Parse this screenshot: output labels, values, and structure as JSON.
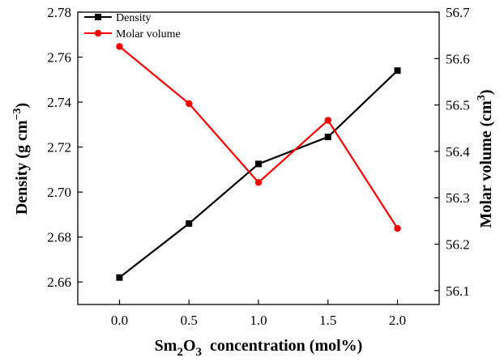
{
  "chart_data": {
    "type": "line",
    "x": [
      0.0,
      0.5,
      1.0,
      1.5,
      2.0
    ],
    "xlim": [
      -0.3,
      2.3
    ],
    "x_ticks": [
      "0.0",
      "0.5",
      "1.0",
      "1.5",
      "2.0"
    ],
    "xlabel": {
      "prefix": "Sm",
      "sub1": "2",
      "mid": "O",
      "sub2": "3",
      "suffix": "  concentration (mol%)"
    },
    "left_axis": {
      "label": {
        "main": "Density (g cm",
        "sup": "−3",
        "close": ")"
      },
      "ylim": [
        2.65,
        2.78
      ],
      "ticks": [
        "2.66",
        "2.68",
        "2.70",
        "2.72",
        "2.74",
        "2.76",
        "2.78"
      ]
    },
    "right_axis": {
      "label": {
        "main": "Molar volume (cm",
        "sup": "3",
        "close": ")"
      },
      "ylim": [
        56.07,
        56.7
      ],
      "ticks": [
        "56.1",
        "56.2",
        "56.3",
        "56.4",
        "56.5",
        "56.6",
        "56.7"
      ]
    },
    "series": [
      {
        "name": "Density",
        "axis": "left",
        "marker": "square",
        "color": "#000000",
        "values": [
          2.662,
          2.686,
          2.7125,
          2.7245,
          2.754
        ]
      },
      {
        "name": "Molar volume",
        "axis": "right",
        "marker": "circle",
        "color": "#ff0000",
        "values": [
          56.626,
          56.503,
          56.333,
          56.467,
          56.234
        ]
      }
    ],
    "legend_position": "top-left",
    "grid": false
  }
}
